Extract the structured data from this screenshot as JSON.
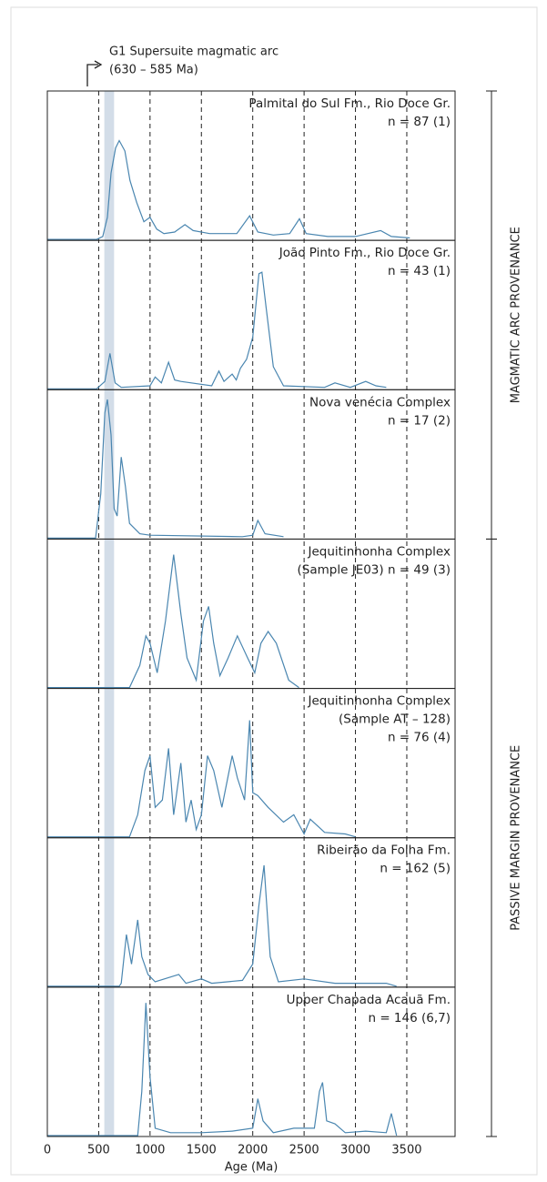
{
  "chart_data": {
    "type": "line",
    "annotation": [
      "G1 Supersuite magmatic arc",
      "(630 – 585 Ma)"
    ],
    "band": [
      555,
      650
    ],
    "band_color": "#d3dde8",
    "color": "#4a86b0",
    "xlabel": "Age (Ma)",
    "xlim": [
      0,
      3970
    ],
    "xticks": [
      0,
      500,
      1000,
      1500,
      2000,
      2500,
      3000,
      3500
    ],
    "ylim": [
      0,
      1
    ],
    "groups": [
      "MAGMATIC ARC PROVENANCE",
      "PASSIVE MARGIN PROVENANCE"
    ],
    "series": [
      {
        "label_lines": [
          "Palmital do Sul Fm., Rio Doce Gr.",
          "n = 87 (1)"
        ],
        "x": [
          0,
          480,
          540,
          585,
          620,
          665,
          700,
          755,
          805,
          870,
          940,
          1000,
          1065,
          1135,
          1240,
          1340,
          1420,
          1580,
          1845,
          1970,
          2050,
          2200,
          2360,
          2455,
          2520,
          2730,
          3000,
          3245,
          3350,
          3530
        ],
        "values": [
          0,
          0,
          0.02,
          0.15,
          0.45,
          0.62,
          0.67,
          0.6,
          0.4,
          0.25,
          0.12,
          0.15,
          0.07,
          0.04,
          0.05,
          0.1,
          0.06,
          0.04,
          0.04,
          0.16,
          0.05,
          0.03,
          0.04,
          0.14,
          0.04,
          0.02,
          0.02,
          0.06,
          0.02,
          0.01
        ]
      },
      {
        "label_lines": [
          "João Pinto Fm., Rio Doce Gr.",
          "n = 43 (1)"
        ],
        "x": [
          0,
          480,
          560,
          610,
          660,
          720,
          1000,
          1050,
          1110,
          1180,
          1240,
          1300,
          1600,
          1670,
          1720,
          1800,
          1840,
          1880,
          1940,
          2000,
          2060,
          2090,
          2130,
          2200,
          2300,
          2700,
          2800,
          2950,
          3100,
          3200,
          3300
        ],
        "values": [
          0,
          0,
          0.05,
          0.24,
          0.04,
          0.01,
          0.02,
          0.08,
          0.04,
          0.18,
          0.06,
          0.05,
          0.02,
          0.12,
          0.05,
          0.1,
          0.06,
          0.14,
          0.2,
          0.35,
          0.78,
          0.79,
          0.55,
          0.15,
          0.02,
          0.01,
          0.04,
          0.01,
          0.05,
          0.02,
          0.01
        ]
      },
      {
        "label_lines": [
          "Nova venécia Complex",
          "n = 17 (2)"
        ],
        "x": [
          0,
          470,
          520,
          560,
          585,
          620,
          650,
          680,
          720,
          760,
          800,
          900,
          1000,
          1900,
          2000,
          2050,
          2120,
          2300
        ],
        "values": [
          0,
          0,
          0.3,
          0.85,
          0.94,
          0.7,
          0.2,
          0.15,
          0.55,
          0.35,
          0.1,
          0.03,
          0.02,
          0.01,
          0.02,
          0.12,
          0.03,
          0.01
        ]
      },
      {
        "label_lines": [
          "Jequitinhonha Complex",
          "(Sample JE03) n = 49 (3)"
        ],
        "x": [
          0,
          800,
          900,
          960,
          1000,
          1070,
          1150,
          1230,
          1300,
          1360,
          1450,
          1520,
          1570,
          1620,
          1680,
          1760,
          1850,
          1950,
          2020,
          2080,
          2150,
          2230,
          2350,
          2450
        ],
        "values": [
          0,
          0,
          0.15,
          0.35,
          0.3,
          0.1,
          0.45,
          0.9,
          0.5,
          0.2,
          0.05,
          0.45,
          0.55,
          0.3,
          0.08,
          0.2,
          0.35,
          0.2,
          0.1,
          0.3,
          0.38,
          0.3,
          0.05,
          0
        ]
      },
      {
        "label_lines": [
          "Jequitinhonha Complex",
          "(Sample AT – 128)",
          "n = 76 (4)"
        ],
        "x": [
          0,
          800,
          880,
          950,
          1000,
          1050,
          1120,
          1180,
          1230,
          1300,
          1350,
          1400,
          1450,
          1500,
          1560,
          1620,
          1700,
          1800,
          1850,
          1920,
          1970,
          2000,
          2050,
          2150,
          2300,
          2400,
          2500,
          2560,
          2700,
          2900,
          3000
        ],
        "values": [
          0,
          0,
          0.15,
          0.45,
          0.55,
          0.2,
          0.25,
          0.6,
          0.15,
          0.5,
          0.1,
          0.25,
          0.05,
          0.15,
          0.55,
          0.45,
          0.2,
          0.55,
          0.4,
          0.25,
          0.79,
          0.3,
          0.28,
          0.2,
          0.1,
          0.15,
          0.02,
          0.12,
          0.03,
          0.02,
          0
        ]
      },
      {
        "label_lines": [
          "Ribeirão da Folha Fm.",
          "n = 162 (5)"
        ],
        "x": [
          0,
          700,
          720,
          770,
          820,
          880,
          920,
          980,
          1050,
          1280,
          1350,
          1500,
          1600,
          1900,
          2000,
          2060,
          2110,
          2170,
          2250,
          2500,
          2800,
          3300,
          3400
        ],
        "values": [
          0,
          0,
          0.02,
          0.35,
          0.15,
          0.45,
          0.2,
          0.08,
          0.03,
          0.08,
          0.02,
          0.05,
          0.02,
          0.04,
          0.15,
          0.55,
          0.82,
          0.2,
          0.03,
          0.05,
          0.02,
          0.02,
          0
        ]
      },
      {
        "label_lines": [
          "Upper Chapada Acauã Fm.",
          "n = 146 (6,7)"
        ],
        "x": [
          0,
          880,
          920,
          960,
          1000,
          1050,
          1200,
          1500,
          1800,
          2000,
          2050,
          2100,
          2200,
          2400,
          2600,
          2650,
          2680,
          2720,
          2800,
          2900,
          3100,
          3300,
          3350,
          3400
        ],
        "values": [
          0,
          0,
          0.3,
          0.9,
          0.4,
          0.05,
          0.02,
          0.02,
          0.03,
          0.05,
          0.25,
          0.1,
          0.02,
          0.05,
          0.05,
          0.3,
          0.36,
          0.1,
          0.08,
          0.02,
          0.03,
          0.02,
          0.15,
          0
        ]
      }
    ]
  }
}
